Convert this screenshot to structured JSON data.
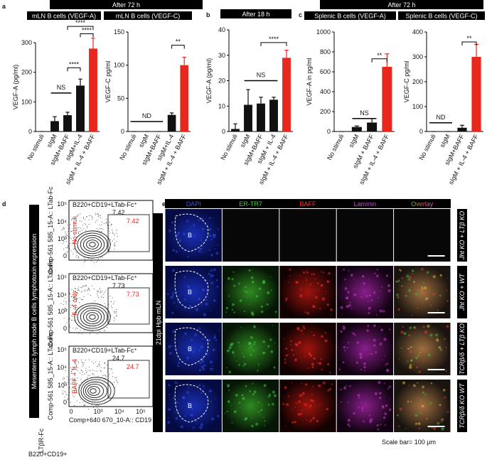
{
  "panel_labels": [
    "a",
    "b",
    "c",
    "d",
    "e"
  ],
  "headers": [
    "After 72 h",
    "After 18 h",
    "After 72 h"
  ],
  "chart_data": [
    {
      "type": "bar",
      "title": "mLN B cells (VEGF-A)",
      "ylabel": "VEGF-A (pg/ml)",
      "categories": [
        "No stimuli",
        "sIgM",
        "sIgM+BAFF",
        "sIgM+IL-4",
        "sIgM + IL-4 + BAFF"
      ],
      "values": [
        0,
        35,
        55,
        155,
        280
      ],
      "errors": [
        0,
        15,
        10,
        22,
        35
      ],
      "colors": [
        "#111111",
        "#111111",
        "#111111",
        "#111111",
        "#e8281e"
      ],
      "ylim": [
        0,
        300
      ],
      "yticks": [
        0,
        100,
        200,
        300
      ],
      "annotations": [
        "NS",
        "****",
        "****",
        "****"
      ]
    },
    {
      "type": "bar",
      "title": "mLN B cells (VEGF-C)",
      "ylabel": "VEGF-C pg/ml",
      "categories": [
        "No stimuli",
        "sIgM",
        "sIgM+BAFF",
        "sIgM+IL-4",
        "sIgM + IL-4 + BAFF"
      ],
      "values": [
        0,
        0,
        0,
        25,
        100
      ],
      "errors": [
        0,
        0,
        0,
        3,
        12
      ],
      "colors": [
        "#111111",
        "#111111",
        "#111111",
        "#111111",
        "#e8281e"
      ],
      "ylim": [
        0,
        150
      ],
      "yticks": [
        0,
        50,
        100,
        150
      ],
      "annotations": [
        "ND",
        "**"
      ]
    },
    {
      "type": "bar",
      "ylabel": "VEGF-A (pg/ml)",
      "categories": [
        "No stimuli",
        "sIgM",
        "sIgM+BAFF",
        "sIgM + IL-4",
        "sIgM + IL-4 + BAFF"
      ],
      "values": [
        1,
        10.5,
        11,
        12.5,
        29
      ],
      "errors": [
        2,
        6,
        2.5,
        1,
        3
      ],
      "colors": [
        "#111111",
        "#111111",
        "#111111",
        "#111111",
        "#e8281e"
      ],
      "ylim": [
        0,
        40
      ],
      "yticks": [
        0,
        10,
        20,
        30,
        40
      ],
      "annotations": [
        "NS",
        "****"
      ]
    },
    {
      "type": "bar",
      "title": "Splenic B cells (VEGF-A)",
      "ylabel": "VEGF-A in pg/ml",
      "categories": [
        "No stimuli",
        "sIgM",
        "sIgM + BAFF",
        "sIgM + IL-4 + BAFF"
      ],
      "values": [
        0,
        45,
        90,
        650
      ],
      "errors": [
        0,
        10,
        40,
        130
      ],
      "colors": [
        "#111111",
        "#111111",
        "#111111",
        "#e8281e"
      ],
      "ylim": [
        0,
        1000
      ],
      "yticks": [
        0,
        200,
        400,
        600,
        800,
        1000
      ],
      "annotations": [
        "NS",
        "**"
      ]
    },
    {
      "type": "bar",
      "title": "Splenic B cells (VEGF-C)",
      "ylabel": "VEGF-C pg/ml",
      "categories": [
        "No stimuli",
        "sIgM",
        "sIgM+BAFF",
        "sIgM + IL-4 + BAFF"
      ],
      "values": [
        0,
        0,
        15,
        300
      ],
      "errors": [
        0,
        0,
        10,
        50
      ],
      "colors": [
        "#111111",
        "#111111",
        "#111111",
        "#e8281e"
      ],
      "ylim": [
        0,
        400
      ],
      "yticks": [
        0,
        100,
        200,
        300,
        400
      ],
      "annotations": [
        "ND",
        "**"
      ]
    }
  ],
  "flow": {
    "side_label": "Mesenteric lymph node B cells lymphotoxin expression",
    "y_outer_label": "LTβR-Fc",
    "x_outer_label": "B220+CD19+",
    "gate_title": "B220+CD19+LTab-Fc⁺",
    "ylabel": "Comp-561 585_15-A:: LTab-Fc",
    "xlabel": "Comp+640 670_10-A:: CD19",
    "ticks": [
      "0",
      "10³",
      "10⁴",
      "10⁵"
    ],
    "plots": [
      {
        "condition": "No stimuli",
        "gate_percent": 7.42,
        "sample_percent": 7.42
      },
      {
        "condition": "IL-4 only",
        "gate_percent": 7.73,
        "sample_percent": 7.73
      },
      {
        "condition": "BAFF + IL-4",
        "gate_percent": 24.7,
        "sample_percent": 24.7
      }
    ]
  },
  "micrographs": {
    "channels": [
      "DAPI",
      "ER-TR7",
      "BAFF",
      "Laminin",
      "Overlay"
    ],
    "rows": [
      "Jht KO + LTβ KO",
      "Jht KO + WT",
      "TCRβ/δ + LTβ KO",
      "TCRβ/δ KO WT"
    ],
    "side_label": "21dpi Hpb mLN",
    "region_label": "B",
    "scale_bar": "Scale bar= 100 μm"
  }
}
